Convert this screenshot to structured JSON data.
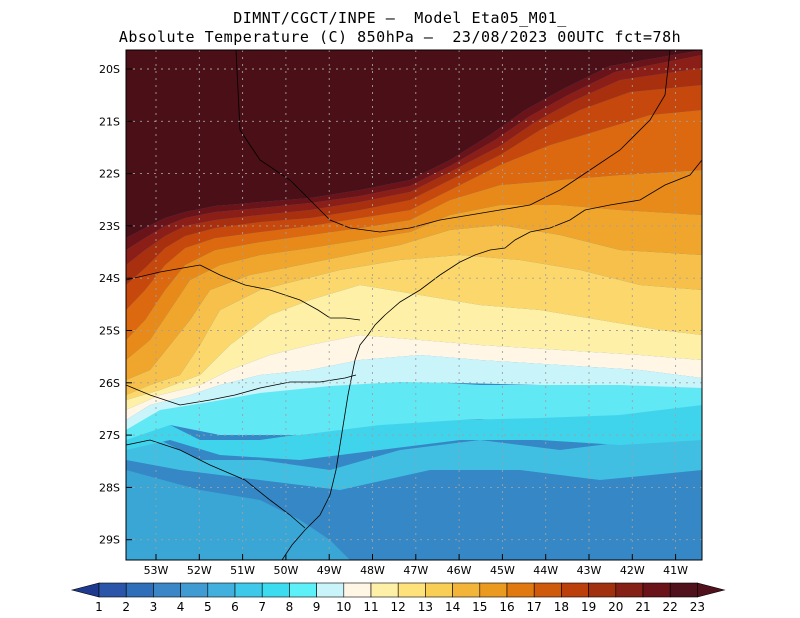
{
  "title": {
    "line1": "DIMNT/CGCT/INPE –  Model Eta05_M01_",
    "line2": "Absolute Temperature (C) 850hPa –  23/08/2023 00UTC fct=78h"
  },
  "lat_labels": [
    "20S",
    "21S",
    "22S",
    "23S",
    "24S",
    "25S",
    "26S",
    "27S",
    "28S",
    "29S"
  ],
  "lon_labels": [
    "53W",
    "52W",
    "51W",
    "50W",
    "49W",
    "48W",
    "47W",
    "46W",
    "45W",
    "44W",
    "43W",
    "42W",
    "41W"
  ],
  "colorbar": {
    "labels": [
      "1",
      "2",
      "3",
      "4",
      "5",
      "6",
      "7",
      "8",
      "9",
      "10",
      "11",
      "12",
      "13",
      "14",
      "15",
      "16",
      "17",
      "18",
      "19",
      "20",
      "21",
      "22",
      "23"
    ],
    "colors": [
      "#1e3a8e",
      "#2b55a8",
      "#2f6eb8",
      "#3a86c6",
      "#3f9bd2",
      "#41b0df",
      "#3ec8ea",
      "#3cdcf0",
      "#5cf0f8",
      "#c8f4fa",
      "#fff6e6",
      "#fff0a8",
      "#ffe27a",
      "#f9ce55",
      "#f2b53a",
      "#eb9a20",
      "#e07a10",
      "#cf5a0c",
      "#bb400c",
      "#a0300e",
      "#842015",
      "#6a1419",
      "#50101c"
    ]
  },
  "map_colors": {
    "hot": "#4a0f17",
    "h22": "#6a1419",
    "h21": "#8b1f18",
    "h20": "#a8300f",
    "h19": "#c6480d",
    "h18": "#dc6810",
    "h17": "#e88a1a",
    "h16": "#f0a52c",
    "h15": "#f6c04a",
    "h14": "#fcd86c",
    "h13": "#fff0a8",
    "h12": "#fff6e6",
    "h11": "#c8f4fa",
    "c9": "#60e8f5",
    "c8": "#40d4ec",
    "c7": "#40bfe3",
    "c6": "#3aa6d6",
    "c5": "#3588c5"
  }
}
